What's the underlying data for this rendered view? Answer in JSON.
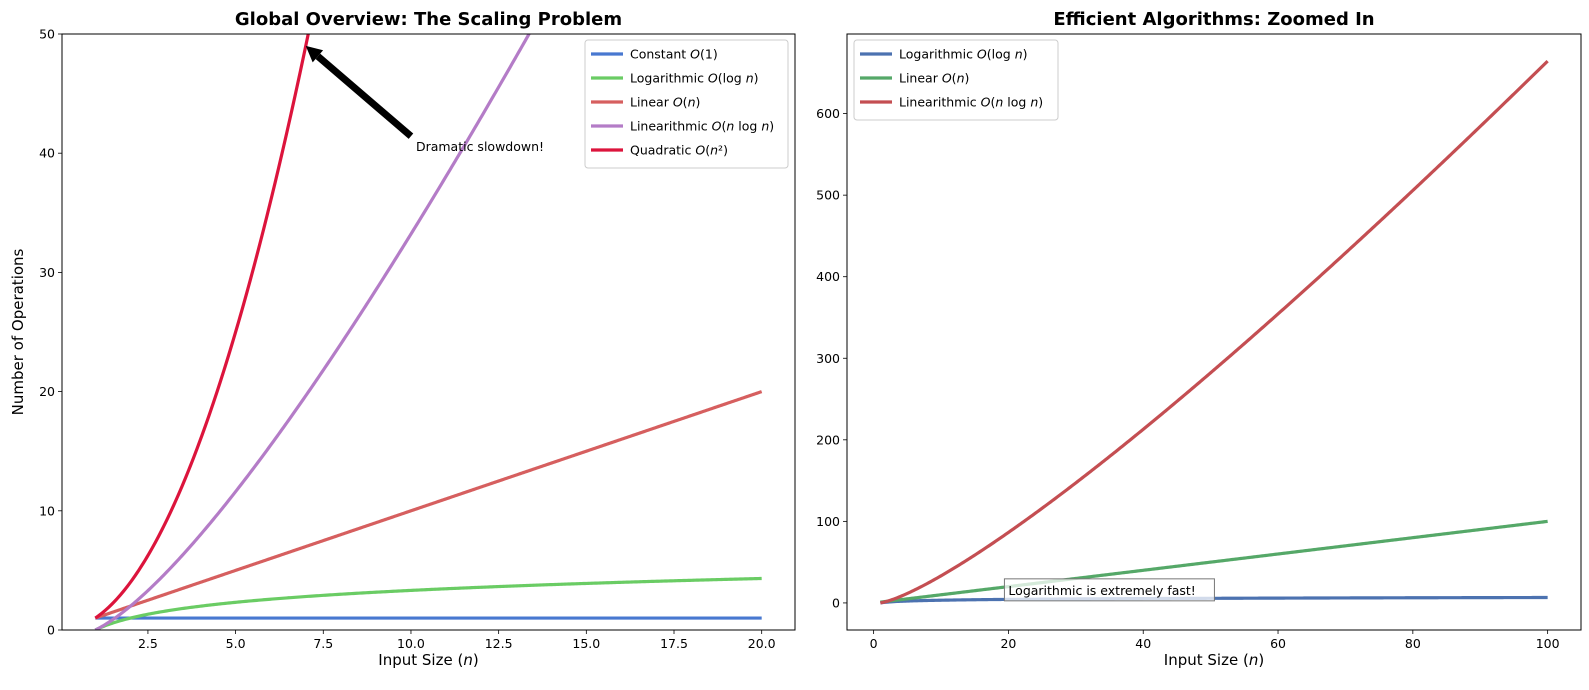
{
  "chart_data": [
    {
      "type": "line",
      "title": "Global Overview: The Scaling Problem",
      "xlabel": "Input Size (n)",
      "ylabel": "Number of Operations",
      "xlim": [
        0.05,
        20.95
      ],
      "ylim": [
        0,
        50
      ],
      "xticks": [
        2.5,
        5.0,
        7.5,
        10.0,
        12.5,
        15.0,
        17.5,
        20.0
      ],
      "xtick_labels": [
        "2.5",
        "5.0",
        "7.5",
        "10.0",
        "12.5",
        "15.0",
        "17.5",
        "20.0"
      ],
      "yticks": [
        0,
        10,
        20,
        30,
        40,
        50
      ],
      "ytick_labels": [
        "0",
        "10",
        "20",
        "30",
        "40",
        "50"
      ],
      "x_range": [
        1,
        20
      ],
      "legend_position": "top-right",
      "series": [
        {
          "name": "Constant O(1)",
          "function": "constant",
          "color": "#4878d0"
        },
        {
          "name": "Logarithmic O(log n)",
          "function": "log",
          "color": "#6acc64"
        },
        {
          "name": "Linear O(n)",
          "function": "linear",
          "color": "#d65f5f"
        },
        {
          "name": "Linearithmic O(n log n)",
          "function": "nlogn",
          "color": "#b47cc7"
        },
        {
          "name": "Quadratic O(n²)",
          "function": "quadratic",
          "color": "#dc143c"
        }
      ],
      "annotations": [
        {
          "text": "Dramatic slowdown!",
          "text_x": 10,
          "text_y": 40,
          "arrow_to_x": 7,
          "arrow_to_y": 49
        }
      ]
    },
    {
      "type": "line",
      "title": "Efficient Algorithms: Zoomed In",
      "xlabel": "Input Size (n)",
      "ylabel": "",
      "xlim": [
        -3.95,
        104.95
      ],
      "ylim": [
        -33.2,
        697.6
      ],
      "xticks": [
        0,
        20,
        40,
        60,
        80,
        100
      ],
      "xtick_labels": [
        "0",
        "20",
        "40",
        "60",
        "80",
        "100"
      ],
      "yticks": [
        0,
        100,
        200,
        300,
        400,
        500,
        600
      ],
      "ytick_labels": [
        "0",
        "100",
        "200",
        "300",
        "400",
        "500",
        "600"
      ],
      "x_range": [
        1,
        100
      ],
      "legend_position": "top-left",
      "series": [
        {
          "name": "Logarithmic O(log n)",
          "function": "log",
          "color": "#4c72b0"
        },
        {
          "name": "Linear O(n)",
          "function": "linear",
          "color": "#55a868"
        },
        {
          "name": "Linearithmic O(n log n)",
          "function": "nlogn",
          "color": "#c44e52"
        }
      ],
      "annotations": [
        {
          "text": "Logarithmic is extremely fast!",
          "text_x": 20,
          "text_y": 5,
          "boxed": true
        }
      ]
    }
  ]
}
